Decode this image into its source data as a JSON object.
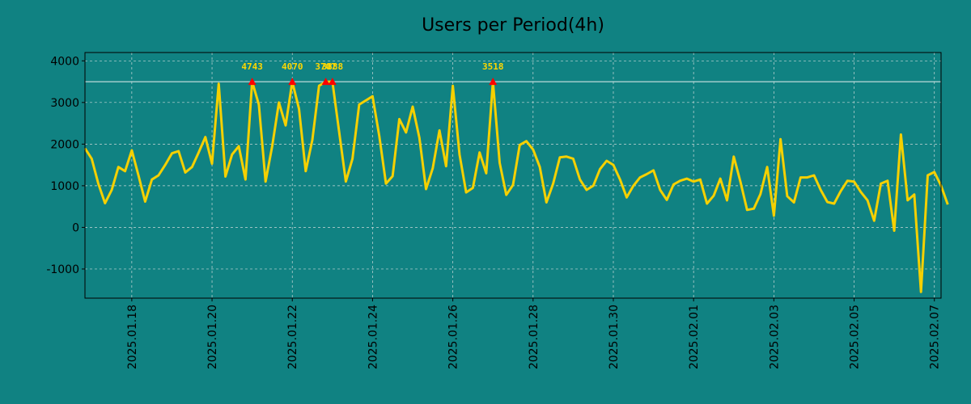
{
  "chart_data": {
    "type": "line",
    "title": "Users per Period(4h)",
    "xlabel": "",
    "ylabel": "",
    "x_start": "2025-01-16T20:00",
    "x_end": "2025-02-07T04:00",
    "period_hours": 4,
    "xlim": [
      "2025-01-16T20:00",
      "2025-02-07T04:00"
    ],
    "ylim": [
      -1700,
      4200
    ],
    "x_ticks": [
      "2025.01.18",
      "2025.01.20",
      "2025.01.22",
      "2025.01.24",
      "2025.01.26",
      "2025.01.28",
      "2025.01.30",
      "2025.02.01",
      "2025.02.03",
      "2025.02.05",
      "2025.02.07"
    ],
    "y_ticks": [
      "-1000",
      "0",
      "1000",
      "2000",
      "3000",
      "4000"
    ],
    "y_tick_values": [
      -1000,
      0,
      1000,
      2000,
      3000,
      4000
    ],
    "threshold": 3500,
    "grid": true,
    "series": [
      {
        "color": "#f5d000",
        "values": [
          1900,
          1650,
          1050,
          580,
          900,
          1450,
          1350,
          1850,
          1250,
          620,
          1150,
          1250,
          1500,
          1780,
          1830,
          1320,
          1450,
          1800,
          2170,
          1530,
          3450,
          1220,
          1750,
          1950,
          1150,
          3500,
          2950,
          1100,
          1950,
          3000,
          2450,
          3500,
          2850,
          1350,
          2100,
          3400,
          3500,
          3500,
          2300,
          1100,
          1650,
          2950,
          3050,
          3150,
          2200,
          1050,
          1230,
          2600,
          2280,
          2900,
          2150,
          920,
          1420,
          2330,
          1470,
          3400,
          1750,
          840,
          950,
          1800,
          1300,
          3500,
          1550,
          780,
          1020,
          1980,
          2070,
          1870,
          1450,
          600,
          1050,
          1680,
          1700,
          1650,
          1150,
          900,
          1000,
          1400,
          1600,
          1500,
          1150,
          720,
          1000,
          1200,
          1280,
          1370,
          900,
          660,
          1030,
          1120,
          1170,
          1100,
          1150,
          570,
          760,
          1170,
          650,
          1700,
          1100,
          420,
          450,
          800,
          1450,
          280,
          2120,
          750,
          600,
          1200,
          1200,
          1250,
          900,
          610,
          570,
          870,
          1120,
          1100,
          850,
          650,
          160,
          1050,
          1120,
          -80,
          2230,
          650,
          790,
          -1550,
          1250,
          1330,
          1000,
          550
        ]
      }
    ],
    "peaks": [
      {
        "label": "4743",
        "index": 25,
        "value": 3500
      },
      {
        "label": "4070",
        "index": 31,
        "value": 3500
      },
      {
        "label": "3707",
        "index": 36,
        "value": 3500
      },
      {
        "label": "3888",
        "index": 37,
        "value": 3500
      },
      {
        "label": "3518",
        "index": 61,
        "value": 3500
      }
    ],
    "colors": {
      "background": "#108282",
      "line": "#f5d000",
      "threshold": "#e8f0f0",
      "peak_marker": "#ff0000",
      "peak_label": "#ffd700"
    }
  }
}
